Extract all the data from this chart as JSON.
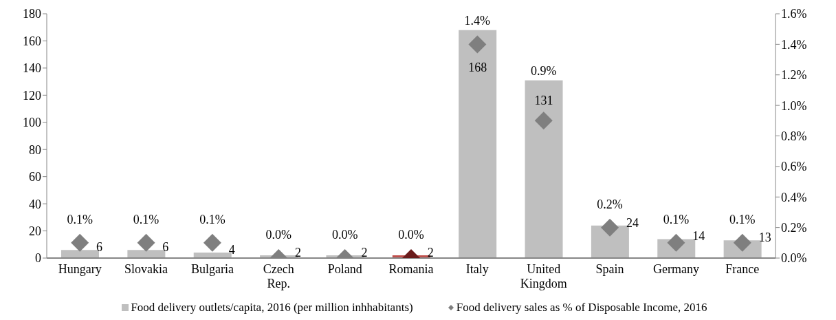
{
  "chart_data": {
    "type": "bar",
    "categories": [
      "Hungary",
      "Slovakia",
      "Bulgaria",
      "Czech Rep.",
      "Poland",
      "Romania",
      "Italy",
      "United Kingdom",
      "Spain",
      "Germany",
      "France"
    ],
    "series": [
      {
        "name": "Food delivery outlets/capita, 2016 (per million inhhabitants)",
        "color": "#bfbfbf",
        "colors": [
          "#bfbfbf",
          "#bfbfbf",
          "#bfbfbf",
          "#bfbfbf",
          "#bfbfbf",
          "#c0504d",
          "#bfbfbf",
          "#bfbfbf",
          "#bfbfbf",
          "#bfbfbf",
          "#bfbfbf"
        ],
        "values": [
          6,
          6,
          4,
          2,
          2,
          2,
          168,
          131,
          24,
          14,
          13
        ],
        "value_labels": [
          "6",
          "6",
          "4",
          "2",
          "2",
          "2",
          "168",
          "131",
          "24",
          "14",
          "13"
        ]
      },
      {
        "name": "Food delivery sales as % of Disposable Income, 2016",
        "type": "scatter",
        "axis": "y2",
        "color": "#7f7f7f",
        "colors": [
          "#7f7f7f",
          "#7f7f7f",
          "#7f7f7f",
          "#7f7f7f",
          "#7f7f7f",
          "#6b1c1c",
          "#7f7f7f",
          "#7f7f7f",
          "#7f7f7f",
          "#7f7f7f",
          "#7f7f7f"
        ],
        "values": [
          0.1,
          0.1,
          0.1,
          0.0,
          0.0,
          0.0,
          1.4,
          0.9,
          0.2,
          0.1,
          0.1
        ],
        "value_labels": [
          "0.1%",
          "0.1%",
          "0.1%",
          "0.0%",
          "0.0%",
          "0.0%",
          "1.4%",
          "0.9%",
          "0.2%",
          "0.1%",
          "0.1%"
        ]
      }
    ],
    "ylim": [
      0,
      180
    ],
    "yticks": [
      0,
      20,
      40,
      60,
      80,
      100,
      120,
      140,
      160,
      180
    ],
    "y2lim": [
      0,
      1.6
    ],
    "y2ticks": [
      {
        "value": 0,
        "label": "0.0%"
      },
      {
        "value": 0.2,
        "label": "0.2%"
      },
      {
        "value": 0.4,
        "label": "0.4%"
      },
      {
        "value": 0.6,
        "label": "0.6%"
      },
      {
        "value": 0.8,
        "label": "0.8%"
      },
      {
        "value": 1.0,
        "label": "1.0%"
      },
      {
        "value": 1.2,
        "label": "1.2%"
      },
      {
        "value": 1.4,
        "label": "1.4%"
      },
      {
        "value": 1.6,
        "label": "1.6%"
      }
    ],
    "grid": false,
    "legend": "bottom",
    "marker": "diamond"
  }
}
